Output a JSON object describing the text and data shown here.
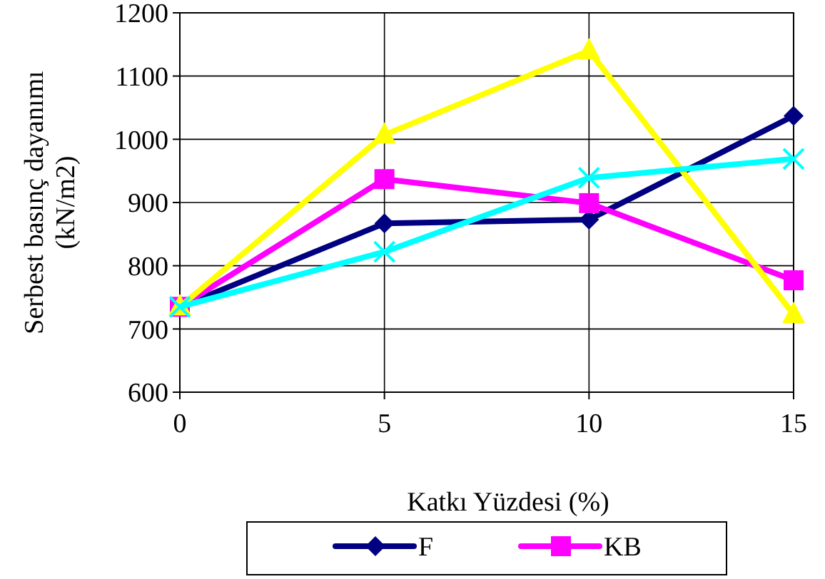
{
  "chart_data": {
    "type": "line",
    "xlabel": "Katkı Yüzdesi (%)",
    "ylabel": "Serbest basınç dayanımı\n(kN/m2)",
    "x": [
      0,
      5,
      10,
      15
    ],
    "xlim": [
      0,
      15
    ],
    "xticks": [
      0,
      5,
      10,
      15
    ],
    "ylim": [
      600,
      1200
    ],
    "yticks": [
      600,
      700,
      800,
      900,
      1000,
      1100,
      1200
    ],
    "grid": true,
    "legend": "bottom",
    "series": [
      {
        "name": "F",
        "color": "#000080",
        "marker": "diamond",
        "values": [
          735,
          867,
          873,
          1037
        ]
      },
      {
        "name": "KB",
        "color": "#ff00ff",
        "marker": "square",
        "values": [
          735,
          937,
          899,
          777
        ]
      },
      {
        "color": "#ffff00",
        "marker": "triangle",
        "values": [
          735,
          1007,
          1140,
          723
        ]
      },
      {
        "color": "#00ffff",
        "marker": "cross",
        "values": [
          735,
          822,
          939,
          969
        ]
      }
    ]
  }
}
